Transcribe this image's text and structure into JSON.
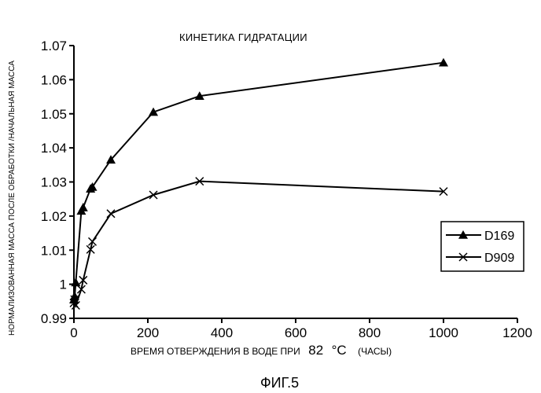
{
  "chart_data": {
    "type": "line",
    "title": "КИНЕТИКА ГИДРАТАЦИИ",
    "ylabel": "НОРМАЛИЗОВАННАЯ МАССА ПОСЛЕ ОБРАБОТКИ /НАЧАЛЬНАЯ МАССА",
    "xlabel": "ВРЕМЯ ОТВЕРЖДЕНИЯ В ВОДЕ ПРИ",
    "xlabel_temp": "82",
    "xlabel_unit": "°C",
    "xlabel_suffix": "(ЧАСЫ)",
    "caption": "ФИГ.5",
    "xlim": [
      0,
      1200
    ],
    "ylim": [
      0.99,
      1.07
    ],
    "x_ticks": [
      "0",
      "200",
      "400",
      "600",
      "800",
      "1000",
      "1200"
    ],
    "y_ticks": [
      "0.99",
      "1",
      "1.01",
      "1.02",
      "1.03",
      "1.04",
      "1.05",
      "1.06",
      "1.07"
    ],
    "x_tick_values": [
      0,
      200,
      400,
      600,
      800,
      1000,
      1200
    ],
    "y_tick_values": [
      0.99,
      1.0,
      1.01,
      1.02,
      1.03,
      1.04,
      1.05,
      1.06,
      1.07
    ],
    "grid": false,
    "legend_position": "right",
    "series": [
      {
        "name": "D169",
        "marker": "triangle",
        "x": [
          0,
          2,
          5,
          20,
          25,
          45,
          50,
          100,
          215,
          340,
          1000
        ],
        "y": [
          0.9955,
          0.9965,
          1.0005,
          1.0215,
          1.0225,
          1.028,
          1.0285,
          1.0365,
          1.0505,
          1.0552,
          1.065
        ]
      },
      {
        "name": "D909",
        "marker": "x",
        "x": [
          0,
          2,
          5,
          20,
          25,
          45,
          50,
          100,
          215,
          340,
          1000
        ],
        "y": [
          0.9945,
          0.9955,
          0.9938,
          0.9985,
          1.0012,
          1.0102,
          1.0125,
          1.0207,
          1.0262,
          1.0302,
          1.0272
        ]
      }
    ]
  }
}
